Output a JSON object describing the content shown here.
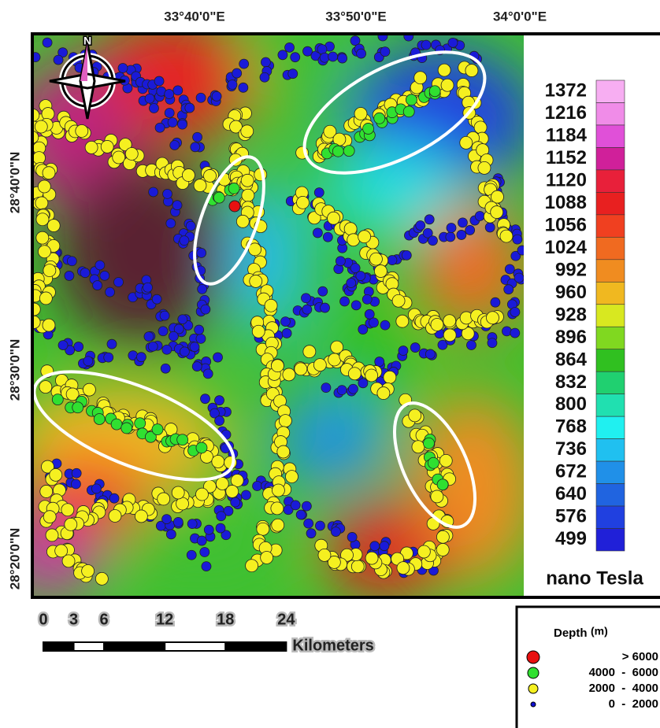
{
  "map": {
    "top_labels": [
      "33°40'0\"E",
      "33°50'0\"E",
      "34°0'0\"E"
    ],
    "left_labels": [
      "28°40'0\"N",
      "28°30'0\"N",
      "28°20'0\"N"
    ],
    "north_label": "N",
    "colorbar": {
      "labels": [
        "1372",
        "1216",
        "1184",
        "1152",
        "1120",
        "1088",
        "1056",
        "1024",
        "992",
        "960",
        "928",
        "896",
        "864",
        "832",
        "800",
        "768",
        "736",
        "672",
        "640",
        "576",
        "499"
      ],
      "colors": [
        "#f7aef2",
        "#f08ce8",
        "#e050d8",
        "#d0209a",
        "#e8203a",
        "#e82020",
        "#f04020",
        "#f06a20",
        "#f08c20",
        "#f0b820",
        "#d8e820",
        "#80d820",
        "#30c020",
        "#20d070",
        "#20e0b0",
        "#20f0f0",
        "#20c0f0",
        "#2090e8",
        "#2064e0",
        "#2040e0",
        "#2020d8"
      ],
      "unit": "nano Tesla"
    },
    "scale_bar": {
      "ticks": [
        0,
        3,
        6,
        12,
        18,
        24
      ],
      "unit": "Kilometers"
    },
    "legend": {
      "title": "Depth",
      "unit": "(m)",
      "entries": [
        {
          "label": "> 6000",
          "color": "#e81010"
        },
        {
          "label": "4000  -  6000",
          "color": "#30e030"
        },
        {
          "label": "2000  -  4000",
          "color": "#f5f020"
        },
        {
          "label": "0  -  2000",
          "color": "#1010d0"
        }
      ]
    }
  }
}
